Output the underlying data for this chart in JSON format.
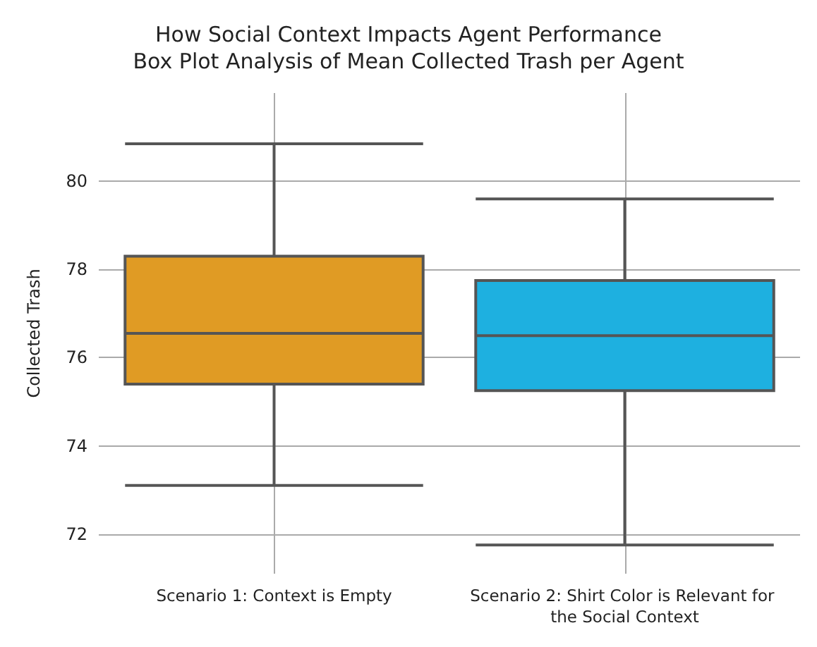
{
  "chart_data": {
    "type": "box",
    "title": "How Social Context Impacts Agent Performance",
    "subtitle": "Box Plot Analysis of Mean Collected Trash per Agent",
    "ylabel": "Collected Trash",
    "categories": [
      "Scenario 1: Context is Empty",
      "Scenario 2: Shirt Color is Relevant for the Social Context"
    ],
    "boxes": [
      {
        "low": 73.1,
        "q1": 75.4,
        "median": 76.55,
        "q3": 78.3,
        "high": 80.85
      },
      {
        "low": 71.75,
        "q1": 75.25,
        "median": 76.5,
        "q3": 77.75,
        "high": 79.6
      }
    ],
    "colors": [
      "#e09b24",
      "#1eb0e0"
    ],
    "ylim": [
      71.1,
      82
    ],
    "yticks": [
      72,
      74,
      76,
      78,
      80
    ],
    "grid": true
  }
}
